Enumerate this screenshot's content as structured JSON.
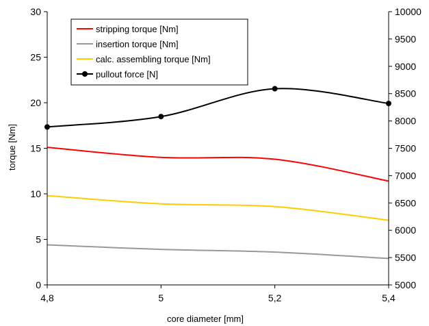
{
  "chart_data": {
    "type": "line",
    "title": "",
    "xlabel": "core diameter [mm]",
    "ylabel": "torque [Nm]",
    "y2label": "",
    "x": [
      4.8,
      5.0,
      5.2,
      5.4
    ],
    "x_tick_labels": [
      "4,8",
      "5",
      "5,2",
      "5,4"
    ],
    "xlim": [
      4.8,
      5.4
    ],
    "ylim": [
      0,
      30
    ],
    "y_ticks": [
      0,
      5,
      10,
      15,
      20,
      25,
      30
    ],
    "y2lim": [
      5000,
      10000
    ],
    "y2_ticks": [
      5000,
      5500,
      6000,
      6500,
      7000,
      7500,
      8000,
      8500,
      9000,
      9500,
      10000
    ],
    "grid": false,
    "legend_position": "top-left",
    "series": [
      {
        "name": "stripping torque [Nm]",
        "axis": "left",
        "color": "#ff0000",
        "markers": false,
        "values": [
          15.1,
          14.0,
          13.8,
          11.4
        ]
      },
      {
        "name": "insertion torque [Nm]",
        "axis": "left",
        "color": "#999999",
        "markers": false,
        "values": [
          4.4,
          3.9,
          3.6,
          2.9
        ]
      },
      {
        "name": "calc. assembling torque [Nm]",
        "axis": "left",
        "color": "#ffcc00",
        "markers": false,
        "values": [
          9.8,
          8.9,
          8.6,
          7.1
        ]
      },
      {
        "name": "pullout force [N]",
        "axis": "right",
        "color": "#000000",
        "markers": true,
        "values": [
          7890,
          8080,
          8590,
          8320
        ]
      }
    ]
  }
}
